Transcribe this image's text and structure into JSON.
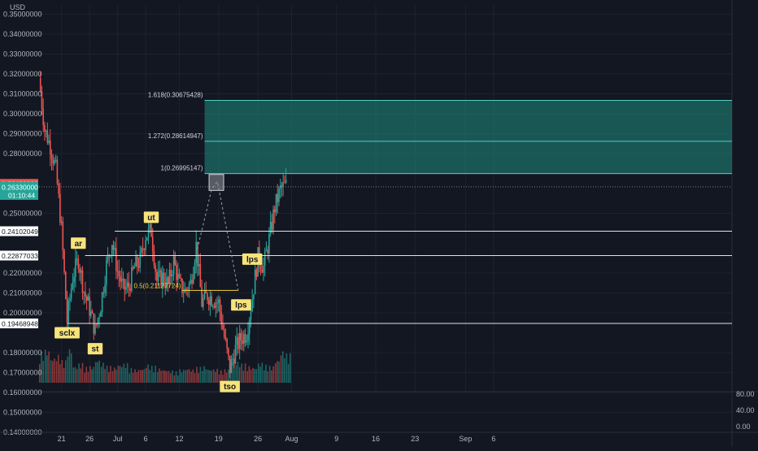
{
  "currency": "USD",
  "colors": {
    "background": "#131722",
    "up": "#26a69a",
    "down": "#ef5350",
    "grid": "#1e222d",
    "level_line": "#e0e3eb",
    "half_line": "#f2d43b",
    "target_fill": "#1f8c80",
    "tag_bg": "#f7e37a"
  },
  "chart_data": {
    "type": "candlestick",
    "title": "",
    "y_axis": {
      "range": [
        0.13,
        0.355
      ],
      "ticks": [
        "0.35000000",
        "0.34000000",
        "0.33000000",
        "0.32000000",
        "0.31000000",
        "0.30000000",
        "0.29000000",
        "0.28000000",
        "0.25000000",
        "0.22000000",
        "0.21000000",
        "0.20000000",
        "0.18000000",
        "0.17000000",
        "0.16000000",
        "0.15000000",
        "0.14000000"
      ]
    },
    "x_axis": {
      "ticks": [
        "21",
        "26",
        "Jul",
        "6",
        "12",
        "19",
        "26",
        "Aug",
        "9",
        "16",
        "23",
        "Sep",
        "6"
      ]
    },
    "price_path": [
      {
        "date": "Jun 17",
        "price": 0.318
      },
      {
        "date": "Jun 18",
        "price": 0.292
      },
      {
        "date": "Jun 19",
        "price": 0.284
      },
      {
        "date": "Jun 20",
        "price": 0.272
      },
      {
        "date": "Jun 21",
        "price": 0.242
      },
      {
        "date": "Jun 22",
        "price": 0.196
      },
      {
        "date": "Jun 23",
        "price": 0.218
      },
      {
        "date": "Jun 24",
        "price": 0.227
      },
      {
        "date": "Jun 25",
        "price": 0.211
      },
      {
        "date": "Jun 26",
        "price": 0.202
      },
      {
        "date": "Jun 27",
        "price": 0.191
      },
      {
        "date": "Jun 28",
        "price": 0.204
      },
      {
        "date": "Jun 29",
        "price": 0.224
      },
      {
        "date": "Jun 30",
        "price": 0.236
      },
      {
        "date": "Jul 1",
        "price": 0.221
      },
      {
        "date": "Jul 2",
        "price": 0.212
      },
      {
        "date": "Jul 3",
        "price": 0.213
      },
      {
        "date": "Jul 4",
        "price": 0.223
      },
      {
        "date": "Jul 5",
        "price": 0.226
      },
      {
        "date": "Jul 6",
        "price": 0.239
      },
      {
        "date": "Jul 7",
        "price": 0.241
      },
      {
        "date": "Jul 8",
        "price": 0.216
      },
      {
        "date": "Jul 9",
        "price": 0.218
      },
      {
        "date": "Jul 10",
        "price": 0.214
      },
      {
        "date": "Jul 11",
        "price": 0.226
      },
      {
        "date": "Jul 12",
        "price": 0.214
      },
      {
        "date": "Jul 13",
        "price": 0.211
      },
      {
        "date": "Jul 14",
        "price": 0.215
      },
      {
        "date": "Jul 15",
        "price": 0.234
      },
      {
        "date": "Jul 16",
        "price": 0.205
      },
      {
        "date": "Jul 17",
        "price": 0.209
      },
      {
        "date": "Jul 18",
        "price": 0.207
      },
      {
        "date": "Jul 19",
        "price": 0.205
      },
      {
        "date": "Jul 20",
        "price": 0.188
      },
      {
        "date": "Jul 21",
        "price": 0.172
      },
      {
        "date": "Jul 22",
        "price": 0.182
      },
      {
        "date": "Jul 23",
        "price": 0.187
      },
      {
        "date": "Jul 24",
        "price": 0.19
      },
      {
        "date": "Jul 25",
        "price": 0.208
      },
      {
        "date": "Jul 26",
        "price": 0.228
      },
      {
        "date": "Jul 27",
        "price": 0.223
      },
      {
        "date": "Jul 28",
        "price": 0.237
      },
      {
        "date": "Jul 29",
        "price": 0.253
      },
      {
        "date": "Jul 30",
        "price": 0.262
      },
      {
        "date": "Jul 31",
        "price": 0.264
      }
    ],
    "volume": {
      "axis_ticks": [
        "80.00",
        "40.00",
        "0.00"
      ],
      "values": [
        55,
        60,
        45,
        50,
        40,
        62,
        30,
        35,
        28,
        30,
        42,
        36,
        30,
        28,
        33,
        35,
        26,
        24,
        26,
        33,
        30,
        26,
        24,
        22,
        20,
        24,
        26,
        24,
        28,
        30,
        25,
        25,
        22,
        24,
        40,
        38,
        34,
        30,
        28,
        36,
        32,
        30,
        42,
        58,
        52
      ]
    },
    "levels": [
      {
        "label": "0.24102049",
        "value": 0.24102049
      },
      {
        "label": "0.22877033",
        "value": 0.22877033
      },
      {
        "label": "0.19468948",
        "value": 0.19468948
      }
    ],
    "current_price": {
      "high_label": "0.26480000",
      "label": "0.26330000",
      "countdown": "01:10:44"
    },
    "fibonacci": [
      {
        "label": "1.618(0.30675428)",
        "value": 0.30675428
      },
      {
        "label": "1.272(0.28614947)",
        "value": 0.28614947
      },
      {
        "label": "1(0.26995147)",
        "value": 0.26995147
      }
    ],
    "retracement": {
      "label": "0.5(0.21127724)",
      "value": 0.21127724
    },
    "annotations": [
      {
        "text": "sclx",
        "date": "Jun 22",
        "price": 0.19
      },
      {
        "text": "ar",
        "date": "Jun 24",
        "price": 0.235
      },
      {
        "text": "st",
        "date": "Jun 27",
        "price": 0.182
      },
      {
        "text": "ut",
        "date": "Jul 7",
        "price": 0.248
      },
      {
        "text": "lps",
        "date": "Jul 25",
        "price": 0.227
      },
      {
        "text": "lps",
        "date": "Jul 23",
        "price": 0.204
      },
      {
        "text": "tso",
        "date": "Jul 21",
        "price": 0.163
      }
    ]
  }
}
